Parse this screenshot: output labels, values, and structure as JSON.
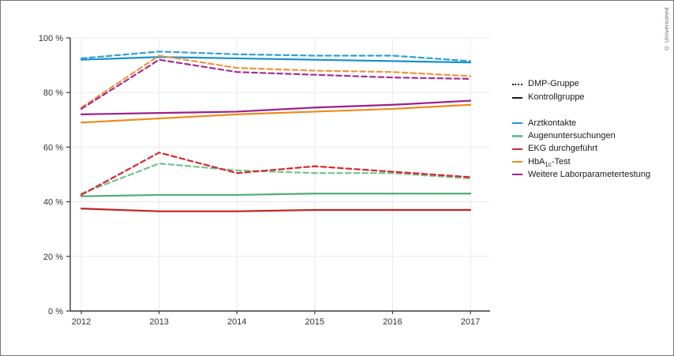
{
  "copyright": "© Universimed",
  "colors": {
    "background": "#ffffff",
    "frame_border": "#757575",
    "axis": "#3a3a3a",
    "grid": "#e9e9e9",
    "tick_label": "#333333",
    "legend_text": "#1a1a1a",
    "group_swatch": "#1a1a1a"
  },
  "legend": {
    "groups": [
      {
        "label": "DMP-Gruppe",
        "style": "dashed"
      },
      {
        "label": "Kontrollgruppe",
        "style": "solid"
      }
    ],
    "series": [
      {
        "label_parts": [
          {
            "text": "Arztkontakte"
          }
        ],
        "color": "#1f97d4"
      },
      {
        "label_parts": [
          {
            "text": "Augenuntersuchungen"
          }
        ],
        "color": "#74bf8d"
      },
      {
        "label_parts": [
          {
            "text": "EKG durchgeführt"
          }
        ],
        "color": "#d0252c"
      },
      {
        "label_parts": [
          {
            "text": "HbA"
          },
          {
            "sub": "1c"
          },
          {
            "text": "-Test"
          }
        ],
        "color": "#ef8b1f"
      },
      {
        "label_parts": [
          {
            "text": "Weitere Laborparametertestung"
          }
        ],
        "color": "#9c2490"
      }
    ]
  },
  "chart_data": {
    "type": "line",
    "title": "",
    "xlabel": "",
    "ylabel": "",
    "x": [
      2012,
      2013,
      2014,
      2015,
      2016,
      2017
    ],
    "x_tick_labels": [
      "2012",
      "2013",
      "2014",
      "2015",
      "2016",
      "2017"
    ],
    "ylim": [
      0,
      100
    ],
    "yticks": [
      0,
      20,
      40,
      60,
      80,
      100
    ],
    "ytick_labels": [
      "0 %",
      "20 %",
      "40 %",
      "60 %",
      "80 %",
      "100 %"
    ],
    "grid": true,
    "legend_position": "right",
    "series": [
      {
        "name": "Arztkontakte (Kontrollgruppe)",
        "group": "Kontrollgruppe",
        "metric": "Arztkontakte",
        "color": "#1991cf",
        "dash": false,
        "values": [
          92,
          93,
          92.5,
          92,
          91.5,
          91
        ]
      },
      {
        "name": "Augenuntersuchungen (Kontrollgruppe)",
        "group": "Kontrollgruppe",
        "metric": "Augenuntersuchungen",
        "color": "#4fae73",
        "dash": false,
        "values": [
          42,
          42.5,
          42.5,
          43,
          43,
          43
        ]
      },
      {
        "name": "EKG durchgeführt (Kontrollgruppe)",
        "group": "Kontrollgruppe",
        "metric": "EKG durchgeführt",
        "color": "#c32222",
        "dash": false,
        "values": [
          37.5,
          36.5,
          36.5,
          37,
          37,
          37
        ]
      },
      {
        "name": "HbA1c-Test (Kontrollgruppe)",
        "group": "Kontrollgruppe",
        "metric": "HbA1c-Test",
        "color": "#ee8a1c",
        "dash": false,
        "values": [
          69,
          70.5,
          72,
          73,
          74,
          75.5
        ]
      },
      {
        "name": "Weitere Laborparametertestung (Kontrollgruppe)",
        "group": "Kontrollgruppe",
        "metric": "Weitere Laborparametertestung",
        "color": "#9c1f8c",
        "dash": false,
        "values": [
          72,
          72.5,
          73,
          74.5,
          75.5,
          77
        ]
      },
      {
        "name": "Arztkontakte (DMP-Gruppe)",
        "group": "DMP-Gruppe",
        "metric": "Arztkontakte",
        "color": "#2f9fd8",
        "dash": true,
        "values": [
          92.5,
          95,
          94,
          93.5,
          93.5,
          91.5
        ]
      },
      {
        "name": "Augenuntersuchungen (DMP-Gruppe)",
        "group": "DMP-Gruppe",
        "metric": "Augenuntersuchungen",
        "color": "#77c28f",
        "dash": true,
        "values": [
          43,
          54,
          51.5,
          50.5,
          50.5,
          48.5
        ]
      },
      {
        "name": "EKG durchgeführt (DMP-Gruppe)",
        "group": "DMP-Gruppe",
        "metric": "EKG durchgeführt",
        "color": "#d8262e",
        "dash": true,
        "values": [
          42.5,
          58,
          50.5,
          53,
          51,
          49
        ]
      },
      {
        "name": "HbA1c-Test (DMP-Gruppe)",
        "group": "DMP-Gruppe",
        "metric": "HbA1c-Test",
        "color": "#f0953a",
        "dash": true,
        "values": [
          74.5,
          93.5,
          89,
          88,
          87.5,
          86
        ]
      },
      {
        "name": "Weitere Laborparametertestung (DMP-Gruppe)",
        "group": "DMP-Gruppe",
        "metric": "Weitere Laborparametertestung",
        "color": "#a42d98",
        "dash": true,
        "values": [
          74,
          92,
          87.5,
          86.5,
          85.5,
          85
        ]
      }
    ]
  }
}
